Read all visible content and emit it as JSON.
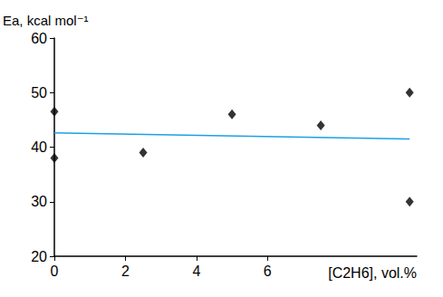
{
  "chart_data": {
    "type": "scatter",
    "x_label": "[C2H6], vol.%",
    "y_label": "Ea, kcal mol⁻¹",
    "xlim": [
      0,
      10.2
    ],
    "xticks": [
      0,
      2,
      4,
      6
    ],
    "ylim": [
      20,
      60
    ],
    "yticks": [
      20,
      30,
      40,
      50,
      60
    ],
    "grid": false,
    "series": [
      {
        "type": "scatter",
        "color": "#000000",
        "marker": "diamond",
        "x": [
          0,
          0,
          2.5,
          5,
          7.5,
          10,
          10
        ],
        "values": [
          46.5,
          38,
          39,
          46,
          44,
          50,
          30
        ]
      },
      {
        "type": "line",
        "color": "#1ba1e2",
        "line_style": "solid",
        "x": [
          0,
          10
        ],
        "values": [
          42.6,
          41.5
        ]
      }
    ]
  }
}
